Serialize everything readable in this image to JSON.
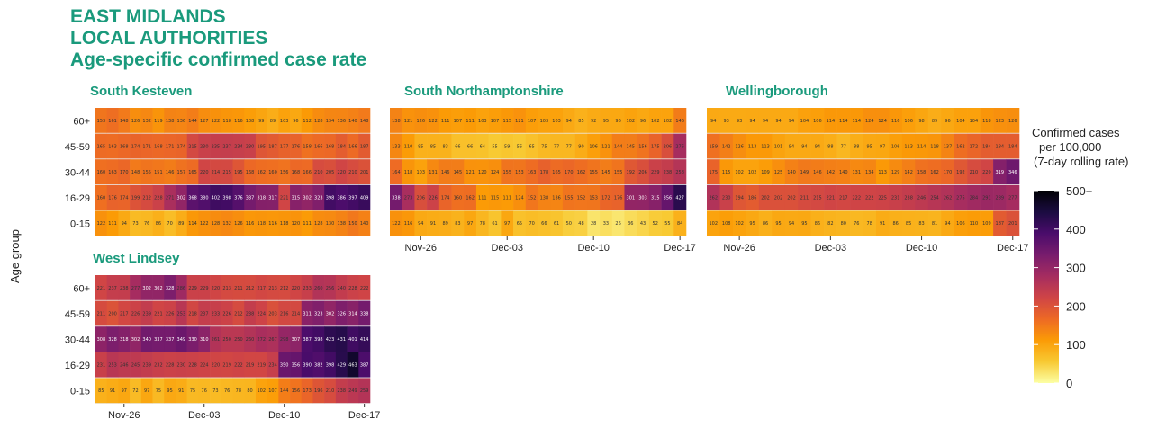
{
  "title": {
    "line1": "EAST MIDLANDS",
    "line2": "LOCAL AUTHORITIES",
    "line3": "Age-specific confirmed case rate"
  },
  "chart_data": {
    "type": "heatmap",
    "ylabel": "Age group",
    "age_groups": [
      "60+",
      "45-59",
      "30-44",
      "16-29",
      "0-15"
    ],
    "x_ticks": [
      "Nov-26",
      "Dec-03",
      "Dec-10",
      "Dec-17"
    ],
    "days": 24,
    "legend": {
      "title_lines": [
        "Confirmed cases",
        "per 100,000",
        "(7-day rolling rate)"
      ],
      "ticks": [
        "0",
        "100",
        "200",
        "300",
        "400",
        "500+"
      ],
      "range": [
        0,
        500
      ],
      "colors": [
        "#fcffa4",
        "#f8c932",
        "#fb9b06",
        "#ed6925",
        "#cf4446",
        "#a52c60",
        "#781c6d",
        "#4a0c6b",
        "#1b0c41",
        "#000004"
      ]
    },
    "panels": [
      {
        "name": "South Kesteven",
        "rows": [
          [
            153,
            161,
            148,
            126,
            132,
            119,
            138,
            136,
            144,
            127,
            122,
            118,
            116,
            108,
            99,
            89,
            103,
            96,
            112,
            128,
            134,
            136,
            140,
            148
          ],
          [
            165,
            163,
            168,
            174,
            171,
            168,
            171,
            174,
            215,
            230,
            235,
            237,
            234,
            230,
            195,
            187,
            177,
            176,
            158,
            166,
            168,
            184,
            166,
            187
          ],
          [
            160,
            163,
            170,
            148,
            155,
            151,
            146,
            157,
            165,
            220,
            214,
            215,
            195,
            168,
            162,
            160,
            156,
            168,
            166,
            210,
            205,
            220,
            210,
            201
          ],
          [
            160,
            176,
            174,
            199,
            212,
            228,
            271,
            302,
            368,
            380,
            402,
            398,
            376,
            337,
            318,
            317,
            221,
            315,
            302,
            323,
            398,
            386,
            397,
            409
          ],
          [
            122,
            111,
            94,
            73,
            76,
            86,
            70,
            89,
            114,
            122,
            128,
            132,
            126,
            116,
            118,
            116,
            118,
            120,
            111,
            128,
            130,
            138,
            150,
            140
          ]
        ]
      },
      {
        "name": "South Northamptonshire",
        "rows": [
          [
            138,
            121,
            126,
            122,
            111,
            107,
            111,
            103,
            107,
            115,
            121,
            107,
            103,
            103,
            94,
            85,
            92,
            95,
            96,
            102,
            96,
            102,
            102,
            146
          ],
          [
            133,
            110,
            85,
            85,
            83,
            66,
            66,
            64,
            55,
            59,
            56,
            65,
            75,
            77,
            77,
            90,
            106,
            121,
            144,
            145,
            156,
            175,
            206,
            276
          ],
          [
            164,
            118,
            103,
            131,
            146,
            145,
            121,
            120,
            124,
            155,
            153,
            163,
            178,
            165,
            170,
            162,
            155,
            145,
            155,
            192,
            206,
            229,
            238,
            258
          ],
          [
            338,
            273,
            206,
            226,
            174,
            160,
            162,
            111,
            115,
            111,
            124,
            152,
            138,
            136,
            155,
            152,
            153,
            172,
            176,
            301,
            303,
            315,
            356,
            427
          ],
          [
            122,
            116,
            94,
            91,
            89,
            83,
            97,
            78,
            61,
            97,
            65,
            70,
            66,
            61,
            50,
            48,
            28,
            33,
            26,
            36,
            43,
            52,
            55,
            84
          ]
        ]
      },
      {
        "name": "Wellingborough",
        "rows": [
          [
            94,
            93,
            93,
            94,
            94,
            94,
            94,
            104,
            106,
            114,
            114,
            114,
            124,
            124,
            116,
            106,
            98,
            89,
            96,
            104,
            104,
            118,
            123,
            126
          ],
          [
            159,
            142,
            126,
            113,
            113,
            101,
            94,
            94,
            94,
            88,
            77,
            88,
            95,
            97,
            106,
            113,
            114,
            118,
            137,
            162,
            172,
            184,
            184,
            184
          ],
          [
            175,
            115,
            102,
            102,
            109,
            125,
            140,
            149,
            146,
            142,
            140,
            131,
            134,
            113,
            129,
            142,
            158,
            162,
            170,
            192,
            210,
            220,
            319,
            346
          ],
          [
            262,
            230,
            194,
            186,
            202,
            202,
            202,
            211,
            215,
            221,
            217,
            222,
            222,
            225,
            231,
            238,
            246,
            254,
            262,
            275,
            284,
            291,
            289,
            277
          ],
          [
            102,
            108,
            102,
            95,
            86,
            95,
            94,
            95,
            86,
            82,
            80,
            76,
            78,
            91,
            86,
            85,
            83,
            81,
            94,
            106,
            110,
            109,
            187,
            201
          ]
        ]
      },
      {
        "name": "West Lindsey",
        "rows": [
          [
            221,
            237,
            238,
            277,
            302,
            302,
            328,
            286,
            229,
            229,
            220,
            213,
            211,
            212,
            217,
            213,
            212,
            220,
            233,
            260,
            256,
            240,
            228,
            222
          ],
          [
            211,
            200,
            217,
            226,
            239,
            221,
            226,
            253,
            218,
            237,
            233,
            226,
            212,
            238,
            224,
            203,
            216,
            214,
            311,
            323,
            302,
            326,
            314,
            338
          ],
          [
            308,
            328,
            318,
            302,
            340,
            337,
            337,
            349,
            330,
            310,
            261,
            250,
            250,
            260,
            272,
            267,
            298,
            307,
            387,
            398,
            423,
            431,
            401,
            414
          ],
          [
            231,
            253,
            246,
            245,
            239,
            232,
            228,
            230,
            228,
            224,
            220,
            219,
            222,
            219,
            219,
            234,
            350,
            356,
            390,
            382,
            398,
            429,
            463,
            387
          ],
          [
            85,
            91,
            97,
            72,
            97,
            75,
            95,
            91,
            75,
            76,
            73,
            76,
            78,
            80,
            102,
            107,
            144,
            156,
            173,
            196,
            210,
            238,
            249,
            259
          ]
        ]
      }
    ]
  }
}
